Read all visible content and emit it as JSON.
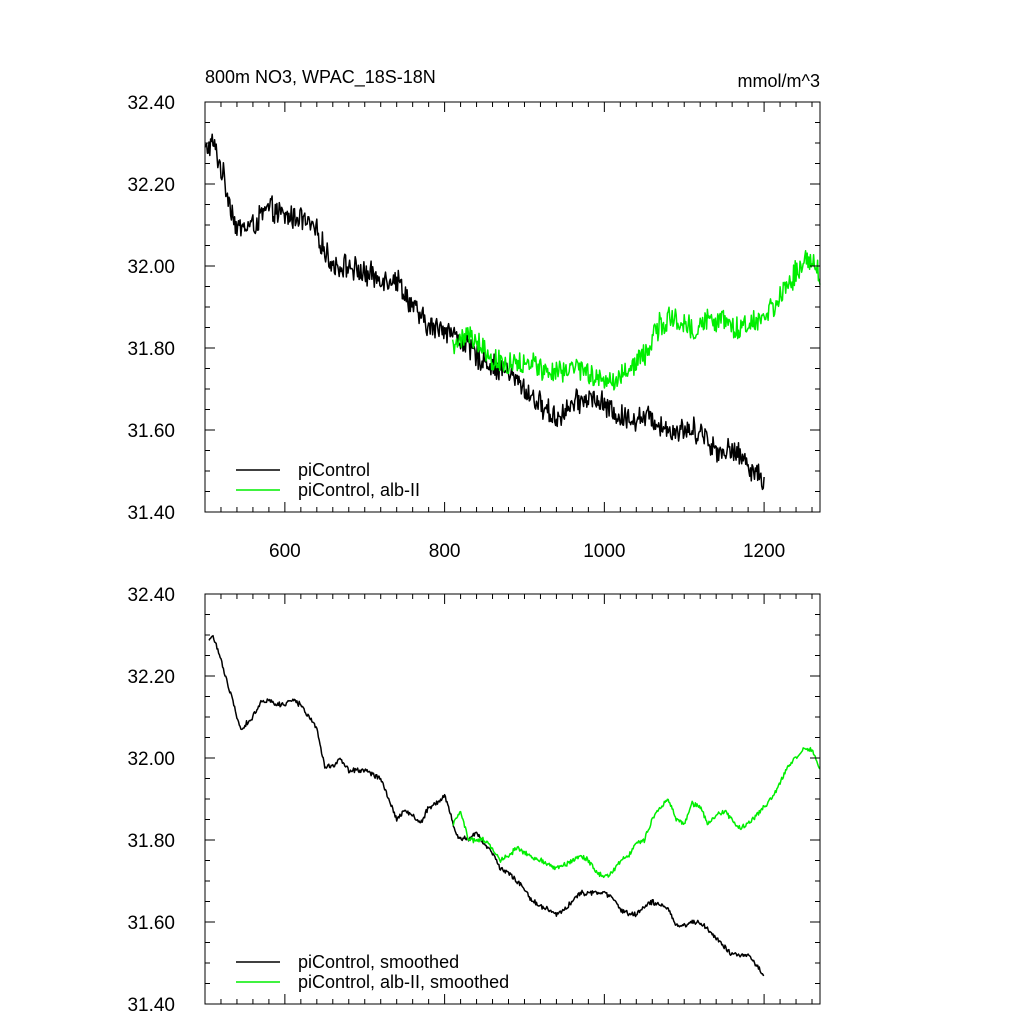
{
  "figure": {
    "title": "800m NO3, WPAC_18S-18N",
    "units": "mmol/m^3"
  },
  "colors": {
    "piControl": "#000000",
    "alb_II": "#00ee00",
    "axis": "#000000",
    "background": "#ffffff"
  },
  "chart_data": [
    {
      "type": "line",
      "title": "800m NO3, WPAC_18S-18N",
      "units": "mmol/m^3",
      "xlim": [
        500,
        1270
      ],
      "ylim": [
        31.4,
        32.4
      ],
      "xticks": [
        600,
        800,
        1000,
        1200
      ],
      "xtick_labels": [
        "600",
        "800",
        "1000",
        "1200"
      ],
      "yticks": [
        31.4,
        31.6,
        31.8,
        32.0,
        32.2,
        32.4
      ],
      "ytick_labels": [
        "31.40",
        "31.60",
        "31.80",
        "32.00",
        "32.20",
        "32.40"
      ],
      "legend_position": "bottom-left",
      "noise": 0.03,
      "series": [
        {
          "name": "piControl",
          "color": "#000000",
          "x": [
            500,
            510,
            520,
            540,
            560,
            580,
            600,
            620,
            640,
            660,
            680,
            700,
            720,
            740,
            760,
            780,
            800,
            820,
            840,
            860,
            880,
            900,
            920,
            940,
            960,
            980,
            1000,
            1020,
            1040,
            1060,
            1080,
            1100,
            1120,
            1140,
            1160,
            1180,
            1200
          ],
          "y": [
            32.28,
            32.3,
            32.24,
            32.09,
            32.1,
            32.14,
            32.12,
            32.12,
            32.08,
            32.0,
            32.0,
            31.98,
            31.97,
            31.97,
            31.9,
            31.85,
            31.85,
            31.82,
            31.78,
            31.76,
            31.74,
            31.7,
            31.66,
            31.63,
            31.66,
            31.68,
            31.66,
            31.63,
            31.63,
            31.63,
            31.6,
            31.6,
            31.6,
            31.55,
            31.55,
            31.52,
            31.47
          ]
        },
        {
          "name": "piControl, alb-II",
          "color": "#00ee00",
          "x": [
            810,
            830,
            850,
            870,
            890,
            910,
            930,
            950,
            970,
            990,
            1010,
            1030,
            1050,
            1070,
            1090,
            1110,
            1130,
            1150,
            1170,
            1190,
            1210,
            1230,
            1250,
            1265,
            1270
          ],
          "y": [
            31.81,
            31.83,
            31.8,
            31.76,
            31.76,
            31.76,
            31.74,
            31.74,
            31.75,
            31.72,
            31.72,
            31.75,
            31.78,
            31.86,
            31.88,
            31.84,
            31.87,
            31.87,
            31.84,
            31.86,
            31.9,
            31.96,
            32.01,
            32.01,
            31.96
          ]
        }
      ]
    },
    {
      "type": "line",
      "xlim": [
        500,
        1270
      ],
      "ylim": [
        31.4,
        32.4
      ],
      "xticks": [
        600,
        800,
        1000,
        1200
      ],
      "xtick_labels": [],
      "yticks": [
        31.4,
        31.6,
        31.8,
        32.0,
        32.2,
        32.4
      ],
      "ytick_labels": [
        "31.40",
        "31.60",
        "31.80",
        "32.00",
        "32.20",
        "32.40"
      ],
      "legend_position": "bottom-left",
      "noise": 0.006,
      "series": [
        {
          "name": "piControl, smoothed",
          "color": "#000000",
          "x": [
            505,
            510,
            520,
            530,
            545,
            560,
            570,
            580,
            590,
            600,
            610,
            620,
            640,
            650,
            660,
            670,
            680,
            690,
            700,
            710,
            720,
            740,
            750,
            760,
            770,
            780,
            790,
            800,
            815,
            830,
            840,
            850,
            860,
            870,
            880,
            890,
            900,
            910,
            920,
            940,
            950,
            960,
            970,
            980,
            990,
            1000,
            1010,
            1020,
            1030,
            1040,
            1060,
            1080,
            1090,
            1100,
            1110,
            1120,
            1140,
            1160,
            1180,
            1200
          ],
          "y": [
            32.29,
            32.3,
            32.24,
            32.17,
            32.07,
            32.1,
            32.14,
            32.14,
            32.13,
            32.13,
            32.14,
            32.13,
            32.07,
            31.98,
            31.98,
            32.0,
            31.97,
            31.97,
            31.97,
            31.96,
            31.95,
            31.85,
            31.87,
            31.86,
            31.84,
            31.88,
            31.89,
            31.91,
            31.81,
            31.8,
            31.82,
            31.79,
            31.77,
            31.73,
            31.72,
            31.7,
            31.68,
            31.65,
            31.64,
            31.62,
            31.63,
            31.65,
            31.67,
            31.67,
            31.67,
            31.67,
            31.66,
            31.63,
            31.62,
            31.62,
            31.65,
            31.63,
            31.59,
            31.59,
            31.6,
            31.6,
            31.56,
            31.52,
            31.52,
            31.47
          ]
        },
        {
          "name": "piControl, alb-II, smoothed",
          "color": "#00ee00",
          "x": [
            810,
            820,
            830,
            840,
            850,
            860,
            870,
            880,
            890,
            900,
            910,
            920,
            930,
            940,
            950,
            960,
            970,
            980,
            990,
            1000,
            1010,
            1020,
            1030,
            1040,
            1050,
            1060,
            1070,
            1080,
            1090,
            1100,
            1110,
            1120,
            1130,
            1140,
            1150,
            1160,
            1170,
            1180,
            1190,
            1200,
            1210,
            1220,
            1230,
            1240,
            1250,
            1260,
            1265,
            1270
          ],
          "y": [
            31.84,
            31.87,
            31.8,
            31.8,
            31.8,
            31.78,
            31.75,
            31.76,
            31.78,
            31.77,
            31.76,
            31.75,
            31.74,
            31.73,
            31.74,
            31.75,
            31.76,
            31.75,
            31.72,
            31.71,
            31.72,
            31.75,
            31.76,
            31.79,
            31.8,
            31.85,
            31.88,
            31.9,
            31.85,
            31.84,
            31.89,
            31.88,
            31.84,
            31.86,
            31.87,
            31.85,
            31.83,
            31.84,
            31.86,
            31.88,
            31.9,
            31.94,
            31.98,
            32.0,
            32.02,
            32.02,
            32.0,
            31.97
          ]
        }
      ]
    }
  ]
}
